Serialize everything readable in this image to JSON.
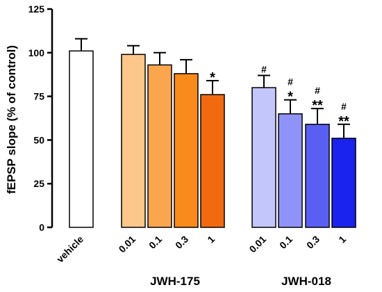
{
  "chart_data": {
    "type": "bar",
    "title": "",
    "xlabel": "",
    "ylabel": "fEPSP slope (% of control)",
    "ylim": [
      0,
      125
    ],
    "yticks": [
      0,
      25,
      50,
      75,
      100,
      125
    ],
    "grid": false,
    "legend": "none",
    "bars": [
      {
        "label": "vehicle",
        "group": "",
        "value": 101,
        "error": 7,
        "color": "#ffffff",
        "annotations": []
      },
      {
        "label": "0.01",
        "group": "JWH-175",
        "value": 99,
        "error": 5,
        "color": "#fdc68a",
        "annotations": []
      },
      {
        "label": "0.1",
        "group": "JWH-175",
        "value": 93,
        "error": 7,
        "color": "#fba64e",
        "annotations": []
      },
      {
        "label": "0.3",
        "group": "JWH-175",
        "value": 88,
        "error": 8,
        "color": "#f98a1c",
        "annotations": []
      },
      {
        "label": "1",
        "group": "JWH-175",
        "value": 76,
        "error": 8,
        "color": "#f26a10",
        "annotations": [
          "*"
        ]
      },
      {
        "label": "0.01",
        "group": "JWH-018",
        "value": 80,
        "error": 7,
        "color": "#c3c6fb",
        "annotations": [
          "#"
        ]
      },
      {
        "label": "0.1",
        "group": "JWH-018",
        "value": 65,
        "error": 8,
        "color": "#8f93f8",
        "annotations": [
          "#",
          "*"
        ]
      },
      {
        "label": "0.3",
        "group": "JWH-018",
        "value": 59,
        "error": 9,
        "color": "#5a5ff3",
        "annotations": [
          "#",
          "**"
        ]
      },
      {
        "label": "1",
        "group": "JWH-018",
        "value": 51,
        "error": 8,
        "color": "#1a22ee",
        "annotations": [
          "#",
          "**"
        ]
      }
    ],
    "groups": [
      "JWH-175",
      "JWH-018"
    ]
  }
}
